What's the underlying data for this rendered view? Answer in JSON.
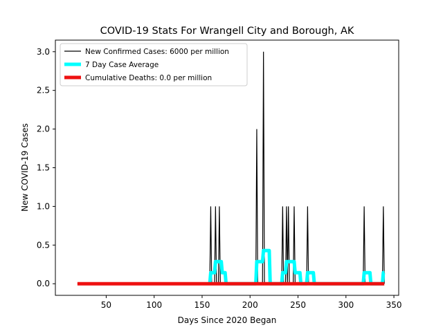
{
  "chart_data": {
    "type": "line",
    "title": "COVID-19 Stats For Wrangell City and Borough, AK",
    "xlabel": "Days Since 2020 Began",
    "ylabel": "New COVID-19 Cases",
    "xlim": [
      -3,
      355
    ],
    "ylim": [
      -0.15,
      3.15
    ],
    "xticks": [
      50,
      100,
      150,
      200,
      250,
      300,
      350
    ],
    "yticks": [
      0.0,
      0.5,
      1.0,
      1.5,
      2.0,
      2.5,
      3.0
    ],
    "ytick_labels": [
      "0.0",
      "0.5",
      "1.0",
      "1.5",
      "2.0",
      "2.5",
      "3.0"
    ],
    "grid": false,
    "legend_position": "upper-left",
    "series": [
      {
        "name": "New Confirmed Cases: 6000 per million",
        "color": "#000000",
        "style": "thin-line",
        "x_start": 20,
        "x_end": 340,
        "spikes": [
          {
            "x": 159,
            "y": 1
          },
          {
            "x": 164,
            "y": 1
          },
          {
            "x": 168,
            "y": 1
          },
          {
            "x": 207,
            "y": 2
          },
          {
            "x": 214,
            "y": 3
          },
          {
            "x": 234,
            "y": 1
          },
          {
            "x": 238,
            "y": 1
          },
          {
            "x": 240,
            "y": 1
          },
          {
            "x": 246,
            "y": 1
          },
          {
            "x": 260,
            "y": 1
          },
          {
            "x": 319,
            "y": 1
          },
          {
            "x": 339,
            "y": 1
          }
        ]
      },
      {
        "name": "7 Day Case Average",
        "color": "#00ffff",
        "style": "thick-line",
        "points": [
          [
            158,
            0.0
          ],
          [
            159,
            0.143
          ],
          [
            163,
            0.143
          ],
          [
            164,
            0.286
          ],
          [
            170,
            0.286
          ],
          [
            171,
            0.143
          ],
          [
            174,
            0.143
          ],
          [
            175,
            0.0
          ],
          [
            206,
            0.0
          ],
          [
            207,
            0.286
          ],
          [
            213,
            0.286
          ],
          [
            214,
            0.429
          ],
          [
            220,
            0.429
          ],
          [
            221,
            0.0
          ],
          [
            233,
            0.0
          ],
          [
            234,
            0.143
          ],
          [
            237,
            0.143
          ],
          [
            238,
            0.286
          ],
          [
            244,
            0.286
          ],
          [
            246,
            0.286
          ],
          [
            247,
            0.143
          ],
          [
            252,
            0.143
          ],
          [
            253,
            0.0
          ],
          [
            259,
            0.0
          ],
          [
            260,
            0.143
          ],
          [
            266,
            0.143
          ],
          [
            267,
            0.0
          ],
          [
            318,
            0.0
          ],
          [
            319,
            0.143
          ],
          [
            325,
            0.143
          ],
          [
            326,
            0.0
          ],
          [
            338,
            0.0
          ],
          [
            339,
            0.143
          ],
          [
            340,
            0.143
          ]
        ]
      },
      {
        "name": "Cumulative Deaths: 0.0 per million",
        "color": "#ee1111",
        "style": "thick-line",
        "points": [
          [
            20,
            0.0
          ],
          [
            340,
            0.0
          ]
        ]
      }
    ]
  }
}
